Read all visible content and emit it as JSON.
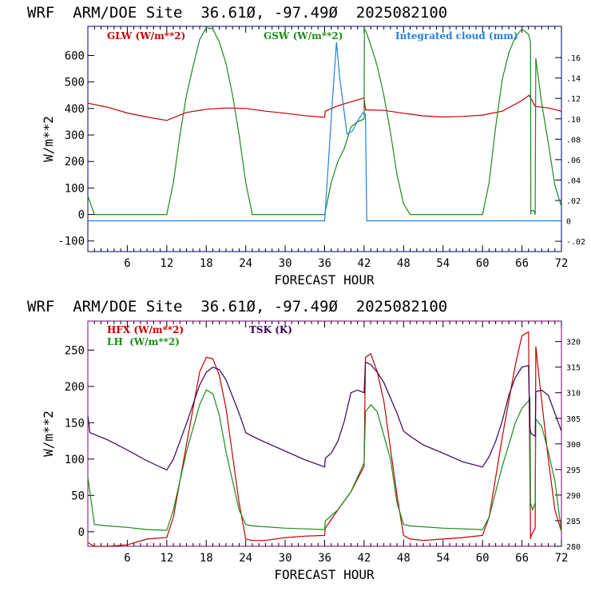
{
  "colors": {
    "frame_top": "#000080",
    "frame_bottom": "#800080",
    "red": "#c00000",
    "green": "#1a8a1a",
    "blue": "#2080e0",
    "purple": "#3a0050"
  },
  "chart_data": [
    {
      "type": "line",
      "title": "WRF  ARM/DOE Site  36.61Ø, -97.49Ø  2025082100",
      "xlabel": "FORECAST HOUR",
      "ylabel": "W/m**2",
      "xlim": [
        0,
        72
      ],
      "ylim": [
        -140,
        710
      ],
      "y2lim": [
        -0.0301,
        0.1906
      ],
      "x_ticks": [
        6,
        12,
        18,
        24,
        30,
        36,
        42,
        48,
        54,
        60,
        66,
        72
      ],
      "x_tick_labels": [
        "6",
        "12",
        "18",
        "24",
        "30",
        "36",
        "42",
        "48",
        "54",
        "60",
        "66",
        "72"
      ],
      "y_ticks": [
        -100,
        0,
        100,
        200,
        300,
        400,
        500,
        600
      ],
      "y_tick_labels": [
        "-100",
        "0",
        "100",
        "200",
        "300",
        "400",
        "500",
        "600"
      ],
      "y2_ticks": [
        -0.02,
        0,
        0.02,
        0.04,
        0.06,
        0.08,
        0.1,
        0.12,
        0.14,
        0.16
      ],
      "y2_tick_labels": [
        "-.02",
        "0",
        ".02",
        ".04",
        ".06",
        ".08",
        ".10",
        ".12",
        ".14",
        ".16"
      ],
      "grid": false,
      "legend": [
        "GLW (W/m**2)",
        "GSW (W/m**2)",
        "Integrated cloud (mm)"
      ],
      "series": [
        {
          "name": "GLW (W/m**2)",
          "color": "#c00000",
          "axis": "left",
          "x": [
            0,
            3,
            6,
            9,
            12,
            15,
            18,
            21,
            24,
            27,
            30,
            33,
            36,
            36.1,
            38,
            40,
            42,
            42.2,
            45,
            48,
            51,
            54,
            57,
            60,
            63,
            66,
            67.1,
            68,
            70,
            72
          ],
          "y": [
            420,
            405,
            383,
            368,
            355,
            385,
            397,
            402,
            400,
            390,
            382,
            373,
            367,
            390,
            410,
            425,
            440,
            395,
            393,
            382,
            372,
            368,
            370,
            375,
            390,
            430,
            450,
            408,
            402,
            390
          ]
        },
        {
          "name": "GSW (W/m**2)",
          "color": "#1a8a1a",
          "axis": "left",
          "x": [
            0,
            1,
            12,
            13,
            14,
            15,
            16,
            17,
            18,
            19,
            20,
            21,
            22,
            23,
            24,
            25,
            36,
            37,
            38,
            39,
            40,
            41,
            42,
            42.05,
            42.3,
            43,
            44,
            45,
            46,
            47,
            48,
            49,
            60,
            61,
            62,
            63,
            64,
            65,
            66,
            67,
            67.3,
            67.35,
            67.4,
            67.8,
            68.0,
            68.1,
            68.4,
            69,
            70,
            71,
            72
          ],
          "y": [
            70,
            0,
            0,
            120,
            300,
            450,
            560,
            660,
            705,
            700,
            650,
            570,
            450,
            300,
            120,
            0,
            0,
            120,
            200,
            250,
            330,
            350,
            360,
            700,
            690,
            640,
            560,
            450,
            310,
            150,
            40,
            0,
            0,
            120,
            330,
            510,
            610,
            670,
            700,
            680,
            650,
            0,
            15,
            15,
            0,
            590,
            530,
            420,
            270,
            110,
            30
          ]
        },
        {
          "name": "Integrated cloud (mm)",
          "color": "#2080e0",
          "axis": "right",
          "x": [
            0,
            36,
            37.2,
            37.8,
            38.3,
            39.4,
            40.2,
            41.2,
            41.8,
            42.2,
            42.4,
            72
          ],
          "y": [
            0,
            0,
            0.12,
            0.175,
            0.14,
            0.085,
            0.088,
            0.1,
            0.106,
            0.105,
            0,
            0
          ]
        }
      ]
    },
    {
      "type": "line",
      "title": "WRF  ARM/DOE Site  36.61Ø, -97.49Ø  2025082100",
      "xlabel": "FORECAST HOUR",
      "ylabel": "W/m**2",
      "xlim": [
        0,
        72
      ],
      "ylim": [
        -20,
        290
      ],
      "y2lim": [
        280,
        324
      ],
      "x_ticks": [
        6,
        12,
        18,
        24,
        30,
        36,
        42,
        48,
        54,
        60,
        66,
        72
      ],
      "x_tick_labels": [
        "6",
        "12",
        "18",
        "24",
        "30",
        "36",
        "42",
        "48",
        "54",
        "60",
        "66",
        "72"
      ],
      "y_ticks": [
        0,
        50,
        100,
        150,
        200,
        250
      ],
      "y_tick_labels": [
        "0",
        "50",
        "100",
        "150",
        "200",
        "250"
      ],
      "y2_ticks": [
        280,
        285,
        290,
        295,
        300,
        305,
        310,
        315,
        320
      ],
      "y2_tick_labels": [
        "280",
        "285",
        "290",
        "295",
        "300",
        "305",
        "310",
        "315",
        "320"
      ],
      "grid": false,
      "legend": [
        "HFX (W/m**2)",
        "LH  (W/m**2)",
        "TSK (K)"
      ],
      "series": [
        {
          "name": "HFX (W/m**2)",
          "color": "#c00000",
          "axis": "left",
          "x": [
            0,
            1,
            3,
            6,
            9,
            12,
            13,
            15,
            17,
            18,
            19,
            20,
            21,
            23,
            24,
            25,
            27,
            30,
            33,
            36,
            36.1,
            38,
            40,
            42,
            42.2,
            43,
            44,
            45,
            47,
            48,
            49,
            51,
            54,
            57,
            60,
            61,
            63,
            65,
            66,
            67,
            67.3,
            67.4,
            68,
            68.1,
            68.5,
            69,
            70,
            71,
            72
          ],
          "y": [
            -15,
            -20,
            -20,
            -18,
            -10,
            -8,
            20,
            120,
            220,
            240,
            238,
            215,
            170,
            40,
            -10,
            -12,
            -12,
            -8,
            -6,
            -5,
            5,
            30,
            55,
            90,
            240,
            245,
            220,
            180,
            50,
            -5,
            -10,
            -12,
            -10,
            -8,
            -5,
            20,
            130,
            230,
            270,
            275,
            -10,
            -5,
            5,
            255,
            220,
            180,
            100,
            30,
            0
          ]
        },
        {
          "name": "LH  (W/m**2)",
          "color": "#1a8a1a",
          "axis": "left",
          "x": [
            0,
            1,
            3,
            6,
            9,
            12,
            13,
            15,
            17,
            18,
            19,
            20,
            21,
            23,
            24,
            25,
            30,
            36,
            36.1,
            38,
            40,
            42,
            42.2,
            43,
            44,
            46,
            47,
            48,
            49,
            54,
            60,
            61,
            63,
            65,
            66,
            67,
            67.2,
            67.3,
            67.6,
            68,
            68.1,
            69,
            70,
            71,
            72
          ],
          "y": [
            75,
            10,
            8,
            6,
            3,
            2,
            30,
            110,
            175,
            195,
            190,
            160,
            110,
            30,
            10,
            8,
            5,
            3,
            15,
            30,
            55,
            95,
            165,
            175,
            165,
            100,
            40,
            10,
            8,
            5,
            3,
            20,
            90,
            150,
            170,
            180,
            185,
            40,
            30,
            40,
            155,
            145,
            110,
            70,
            0
          ]
        },
        {
          "name": "TSK (K)",
          "color": "#3a0050",
          "axis": "right",
          "x": [
            0,
            0.3,
            3,
            6,
            9,
            12,
            13,
            15,
            17,
            18,
            19,
            20,
            21,
            23,
            24,
            25,
            27,
            30,
            33,
            36,
            36.1,
            37,
            38,
            39,
            40,
            41,
            42,
            42.2,
            43,
            44,
            45,
            47,
            48,
            49,
            51,
            54,
            57,
            60,
            61,
            62,
            63,
            64,
            65,
            66,
            67,
            67.2,
            67.4,
            68,
            68.1,
            69,
            70,
            71,
            72
          ],
          "y": [
            305.5,
            302.2,
            300.8,
            298.8,
            296.7,
            294.9,
            297,
            304,
            311.5,
            314,
            315,
            314.5,
            312.5,
            306,
            302.2,
            301.5,
            300.3,
            298.6,
            296.9,
            295.5,
            297.2,
            298.2,
            300.5,
            304.5,
            310,
            310.5,
            310,
            316,
            315.5,
            314,
            312,
            306,
            302.5,
            301.5,
            299.8,
            298.2,
            296.5,
            295.5,
            297.5,
            300.5,
            304.5,
            309.5,
            313,
            315,
            315.3,
            303,
            302,
            301.5,
            310.2,
            310.5,
            309.5,
            306,
            302.5
          ]
        }
      ]
    }
  ]
}
